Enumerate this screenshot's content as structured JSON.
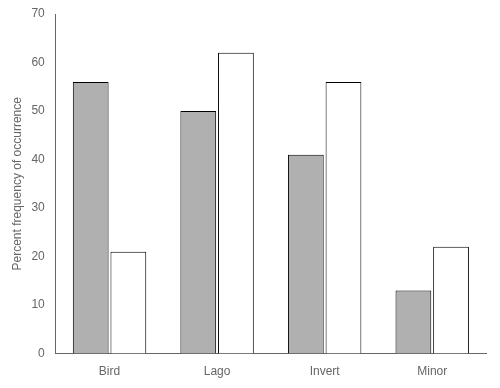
{
  "chart_data": {
    "type": "bar",
    "categories": [
      "Bird",
      "Lago",
      "Invert",
      "Minor"
    ],
    "series": [
      {
        "color": "#b0b0b0",
        "values": [
          56,
          50,
          41,
          13
        ]
      },
      {
        "color": "#ffffff",
        "values": [
          21,
          62,
          56,
          22
        ]
      }
    ],
    "ylabel": "Percent frequency of occurrence",
    "ylim": [
      0,
      70
    ],
    "yticks": [
      0,
      10,
      20,
      30,
      40,
      50,
      60,
      70
    ],
    "grid": false
  }
}
